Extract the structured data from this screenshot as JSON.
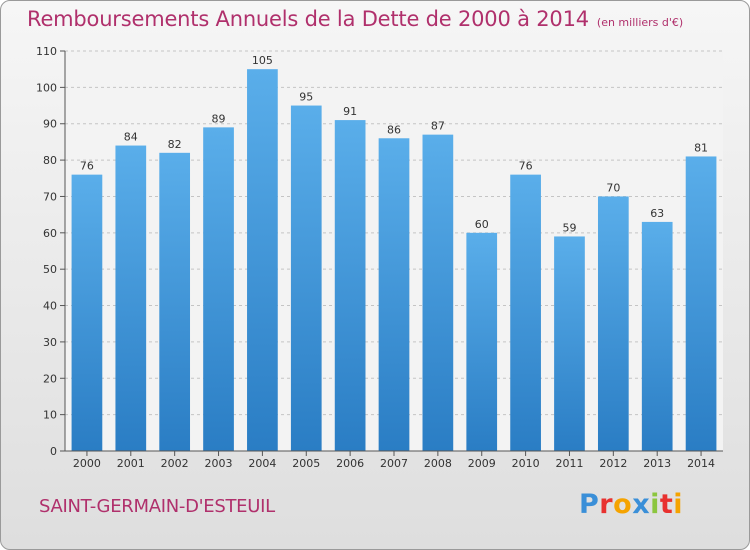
{
  "title": "Remboursements Annuels de la Dette de 2000 à 2014",
  "unit": "(en milliers d'€)",
  "commune": "SAINT-GERMAIN-D'ESTEUIL",
  "logo": {
    "letters": [
      {
        "char": "P",
        "color": "#3a8fd8"
      },
      {
        "char": "r",
        "color": "#e8312f"
      },
      {
        "char": "o",
        "color": "#f5a300"
      },
      {
        "char": "x",
        "color": "#3a8fd8"
      },
      {
        "char": "i",
        "color": "#8cc63f"
      },
      {
        "char": "t",
        "color": "#e8312f"
      },
      {
        "char": "i",
        "color": "#f5a300"
      }
    ]
  },
  "chart_data": {
    "type": "bar",
    "categories": [
      "2000",
      "2001",
      "2002",
      "2003",
      "2004",
      "2005",
      "2006",
      "2007",
      "2008",
      "2009",
      "2010",
      "2011",
      "2012",
      "2013",
      "2014"
    ],
    "values": [
      76,
      84,
      82,
      89,
      105,
      95,
      91,
      86,
      87,
      60,
      76,
      59,
      70,
      63,
      81
    ],
    "ylim": [
      0,
      110
    ],
    "yticks": [
      0,
      10,
      20,
      30,
      40,
      50,
      60,
      70,
      80,
      90,
      100,
      110
    ],
    "grid": true,
    "bar_color_top": "#5aaeea",
    "bar_color_bottom": "#2a7dc4"
  }
}
